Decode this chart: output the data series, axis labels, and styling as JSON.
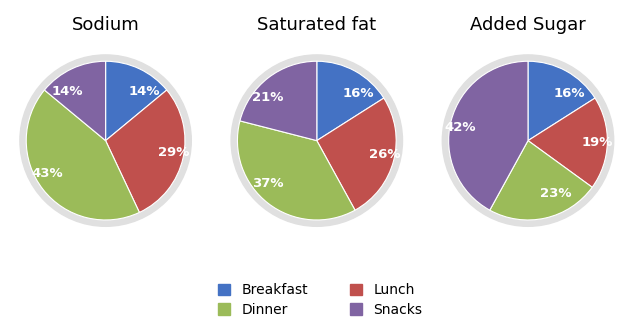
{
  "charts": [
    {
      "title": "Sodium",
      "values": [
        14,
        29,
        43,
        14
      ],
      "labels": [
        "14%",
        "29%",
        "43%",
        "14%"
      ],
      "startangle": 90
    },
    {
      "title": "Saturated fat",
      "values": [
        16,
        26,
        37,
        21
      ],
      "labels": [
        "16%",
        "26%",
        "37%",
        "21%"
      ],
      "startangle": 90
    },
    {
      "title": "Added Sugar",
      "values": [
        16,
        19,
        23,
        42
      ],
      "labels": [
        "16%",
        "19%",
        "23%",
        "42%"
      ],
      "startangle": 90
    }
  ],
  "colors": [
    "#4472C4",
    "#C0504D",
    "#9BBB59",
    "#8064A2"
  ],
  "legend_labels": [
    "Breakfast",
    "Lunch",
    "Dinner",
    "Snacks"
  ],
  "background_color": "#ffffff",
  "title_fontsize": 13,
  "label_fontsize": 9.5
}
